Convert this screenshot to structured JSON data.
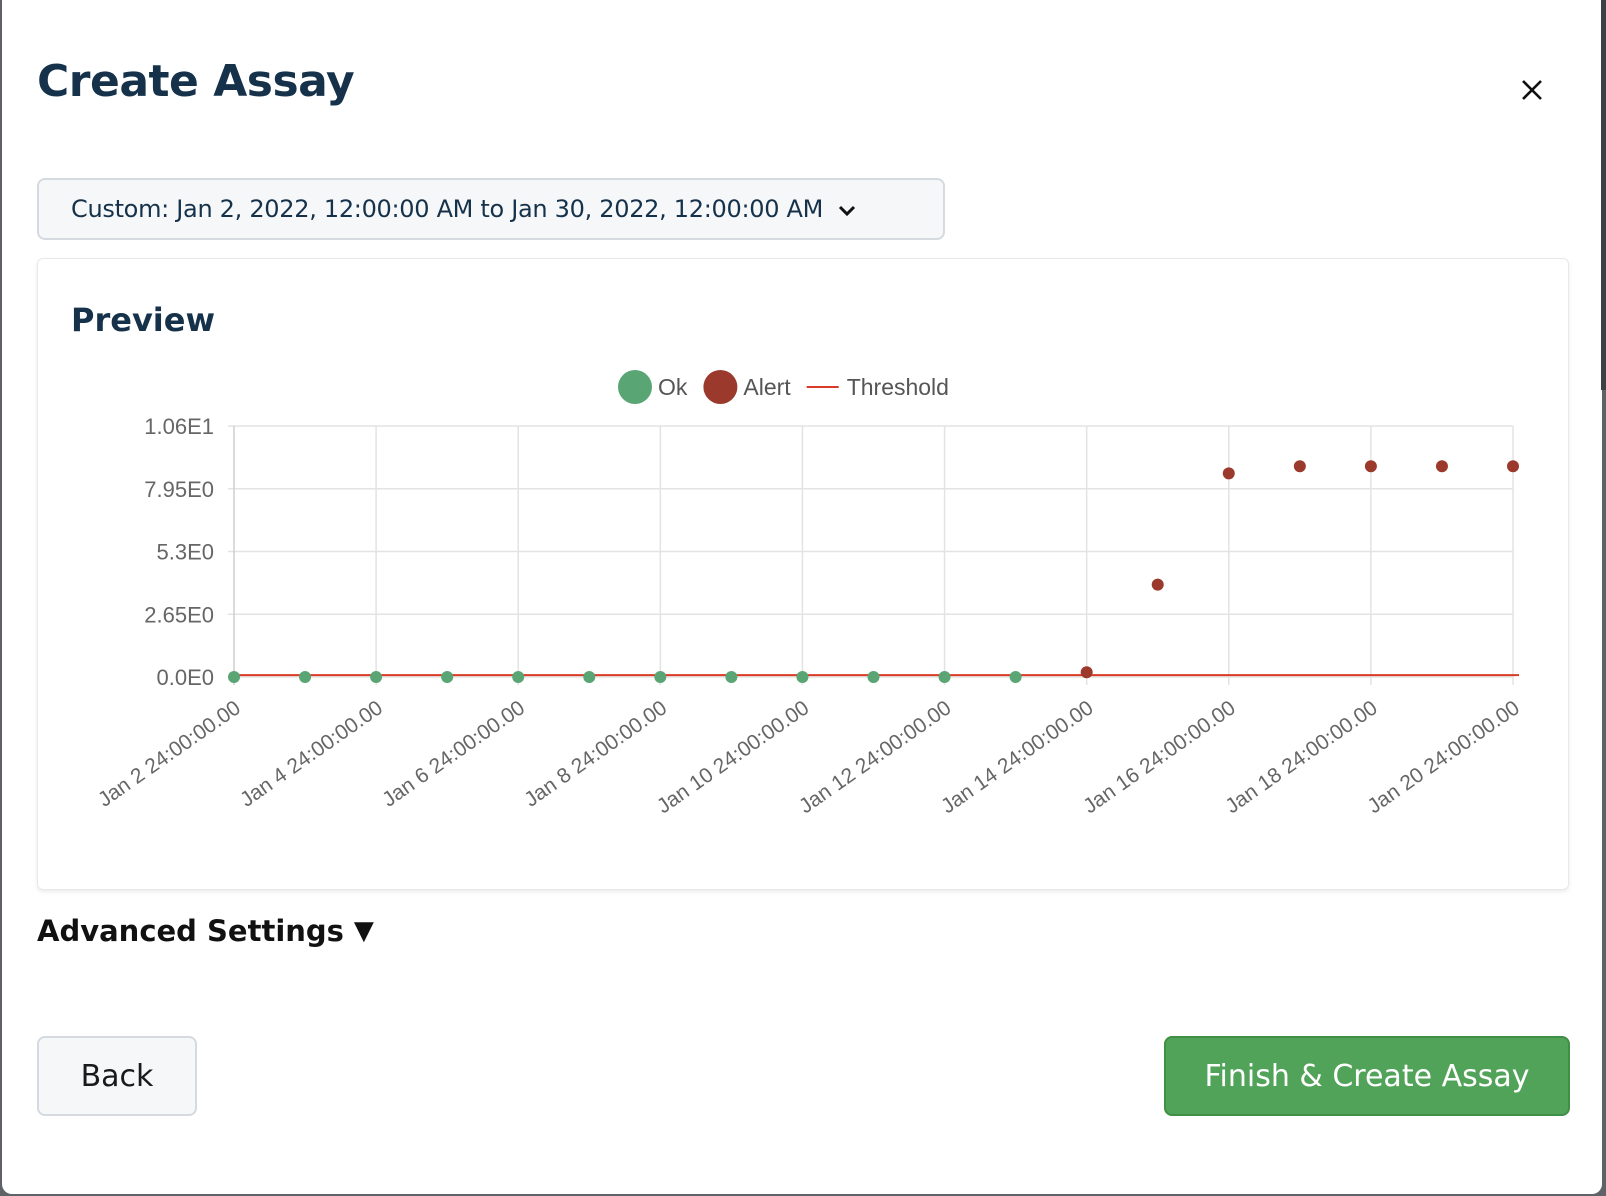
{
  "modal": {
    "title": "Create Assay",
    "close_icon": "close-icon",
    "range_label": "Custom: Jan 2, 2022, 12:00:00 AM to Jan 30, 2022, 12:00:00 AM",
    "preview_title": "Preview",
    "advanced_label": "Advanced Settings",
    "advanced_toggle": "▼",
    "back_label": "Back",
    "finish_label": "Finish & Create Assay"
  },
  "colors": {
    "ok": "#5aa574",
    "alert": "#9b3a2c",
    "threshold": "#d93b26",
    "finish_button": "#52a35a",
    "title": "#16324a"
  },
  "chart_data": {
    "type": "scatter",
    "legend": [
      {
        "name": "Ok",
        "kind": "point",
        "color": "#5aa574"
      },
      {
        "name": "Alert",
        "kind": "point",
        "color": "#9b3a2c"
      },
      {
        "name": "Threshold",
        "kind": "line",
        "color": "#d93b26"
      }
    ],
    "legend_position": "top-center",
    "x_ticks": [
      "Jan 2 24:00:00.00",
      "Jan 4 24:00:00.00",
      "Jan 6 24:00:00.00",
      "Jan 8 24:00:00.00",
      "Jan 10 24:00:00.00",
      "Jan 12 24:00:00.00",
      "Jan 14 24:00:00.00",
      "Jan 16 24:00:00.00",
      "Jan 18 24:00:00.00",
      "Jan 20 24:00:00.00"
    ],
    "y_ticks": [
      "0.0E0",
      "2.65E0",
      "5.3E0",
      "7.95E0",
      "1.06E1"
    ],
    "ylim": [
      0,
      10.6
    ],
    "x_range_days": [
      2,
      20
    ],
    "grid": true,
    "series": [
      {
        "name": "Ok",
        "points": [
          {
            "x_day": 2,
            "y": 0
          },
          {
            "x_day": 3,
            "y": 0
          },
          {
            "x_day": 4,
            "y": 0
          },
          {
            "x_day": 5,
            "y": 0
          },
          {
            "x_day": 6,
            "y": 0
          },
          {
            "x_day": 7,
            "y": 0
          },
          {
            "x_day": 8,
            "y": 0
          },
          {
            "x_day": 9,
            "y": 0
          },
          {
            "x_day": 10,
            "y": 0
          },
          {
            "x_day": 11,
            "y": 0
          },
          {
            "x_day": 12,
            "y": 0
          },
          {
            "x_day": 13,
            "y": 0
          }
        ]
      },
      {
        "name": "Alert",
        "points": [
          {
            "x_day": 14,
            "y": 0.2
          },
          {
            "x_day": 15,
            "y": 3.9
          },
          {
            "x_day": 16,
            "y": 8.6
          },
          {
            "x_day": 17,
            "y": 8.9
          },
          {
            "x_day": 18,
            "y": 8.9
          },
          {
            "x_day": 19,
            "y": 8.9
          },
          {
            "x_day": 20,
            "y": 8.9
          }
        ]
      },
      {
        "name": "Threshold",
        "line": [
          {
            "x_day": 2,
            "y": 0.08
          },
          {
            "x_day": 20,
            "y": 0.08
          }
        ]
      }
    ]
  }
}
